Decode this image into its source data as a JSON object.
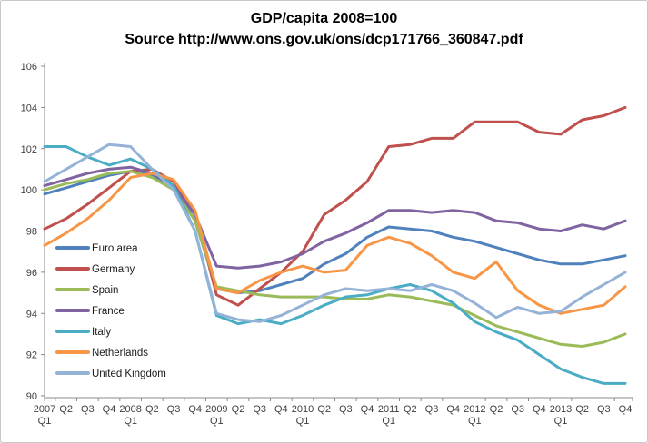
{
  "header": {
    "title": "GDP/capita 2008=100",
    "subtitle": "Source http://www.ons.gov.uk/ons/dcp171766_360847.pdf"
  },
  "chart_data": {
    "type": "line",
    "title": "GDP/capita 2008=100",
    "subtitle": "Source http://www.ons.gov.uk/ons/dcp171766_360847.pdf",
    "grid": false,
    "legend_position": "inside-left",
    "ylim": [
      90,
      106
    ],
    "ytick_step": 2,
    "xlabel": "",
    "ylabel": "",
    "categories": [
      "2007 Q1",
      "Q2",
      "Q3",
      "Q4",
      "2008 Q1",
      "Q2",
      "Q3",
      "Q4",
      "2009 Q1",
      "Q2",
      "Q3",
      "Q4",
      "2010 Q1",
      "Q2",
      "Q3",
      "Q4",
      "2011 Q1",
      "Q2",
      "Q3",
      "Q4",
      "2012 Q1",
      "Q2",
      "Q3",
      "Q4",
      "2013 Q1",
      "Q2",
      "Q3",
      "Q4"
    ],
    "series": [
      {
        "name": "Euro area",
        "color": "#4F81BD",
        "values": [
          99.8,
          100.1,
          100.4,
          100.7,
          100.9,
          100.7,
          100.2,
          98.5,
          95.2,
          95.0,
          95.1,
          95.4,
          95.7,
          96.4,
          96.9,
          97.7,
          98.2,
          98.1,
          98.0,
          97.7,
          97.5,
          97.2,
          96.9,
          96.6,
          96.4,
          96.4,
          96.6,
          96.8
        ]
      },
      {
        "name": "Germany",
        "color": "#C0504D",
        "values": [
          98.1,
          98.6,
          99.3,
          100.1,
          100.9,
          101.0,
          100.4,
          98.9,
          94.9,
          94.4,
          95.2,
          96.0,
          97.0,
          98.8,
          99.5,
          100.4,
          102.1,
          102.2,
          102.5,
          102.5,
          103.3,
          103.3,
          103.3,
          102.8,
          102.7,
          103.4,
          103.6,
          104.0
        ]
      },
      {
        "name": "Spain",
        "color": "#9BBB59",
        "values": [
          100.0,
          100.3,
          100.5,
          100.8,
          100.9,
          100.6,
          100.0,
          98.5,
          95.3,
          95.1,
          94.9,
          94.8,
          94.8,
          94.8,
          94.7,
          94.7,
          94.9,
          94.8,
          94.6,
          94.4,
          93.9,
          93.4,
          93.1,
          92.8,
          92.5,
          92.4,
          92.6,
          93.0
        ]
      },
      {
        "name": "France",
        "color": "#8064A2",
        "values": [
          100.2,
          100.5,
          100.8,
          101.0,
          101.1,
          100.8,
          100.2,
          98.8,
          96.3,
          96.2,
          96.3,
          96.5,
          96.9,
          97.5,
          97.9,
          98.4,
          99.0,
          99.0,
          98.9,
          99.0,
          98.9,
          98.5,
          98.4,
          98.1,
          98.0,
          98.3,
          98.1,
          98.5
        ]
      },
      {
        "name": "Italy",
        "color": "#4BACC6",
        "values": [
          102.1,
          102.1,
          101.6,
          101.2,
          101.5,
          101.0,
          100.2,
          98.0,
          93.9,
          93.5,
          93.7,
          93.5,
          93.9,
          94.4,
          94.8,
          94.9,
          95.2,
          95.4,
          95.1,
          94.5,
          93.6,
          93.1,
          92.7,
          92.0,
          91.3,
          90.9,
          90.6,
          90.6
        ]
      },
      {
        "name": "Netherlands",
        "color": "#F79646",
        "values": [
          97.3,
          97.9,
          98.6,
          99.5,
          100.6,
          100.8,
          100.5,
          99.0,
          95.2,
          95.0,
          95.6,
          96.0,
          96.3,
          96.0,
          96.1,
          97.3,
          97.7,
          97.4,
          96.8,
          96.0,
          95.7,
          96.5,
          95.1,
          94.4,
          94.0,
          94.2,
          94.4,
          95.3
        ]
      },
      {
        "name": "United Kingdom",
        "color": "#95B3D7",
        "values": [
          100.4,
          101.0,
          101.6,
          102.2,
          102.1,
          101.0,
          100.0,
          98.0,
          94.0,
          93.7,
          93.6,
          93.9,
          94.4,
          94.9,
          95.2,
          95.1,
          95.2,
          95.1,
          95.4,
          95.1,
          94.5,
          93.8,
          94.3,
          94.0,
          94.1,
          94.8,
          95.4,
          96.0
        ]
      }
    ]
  }
}
